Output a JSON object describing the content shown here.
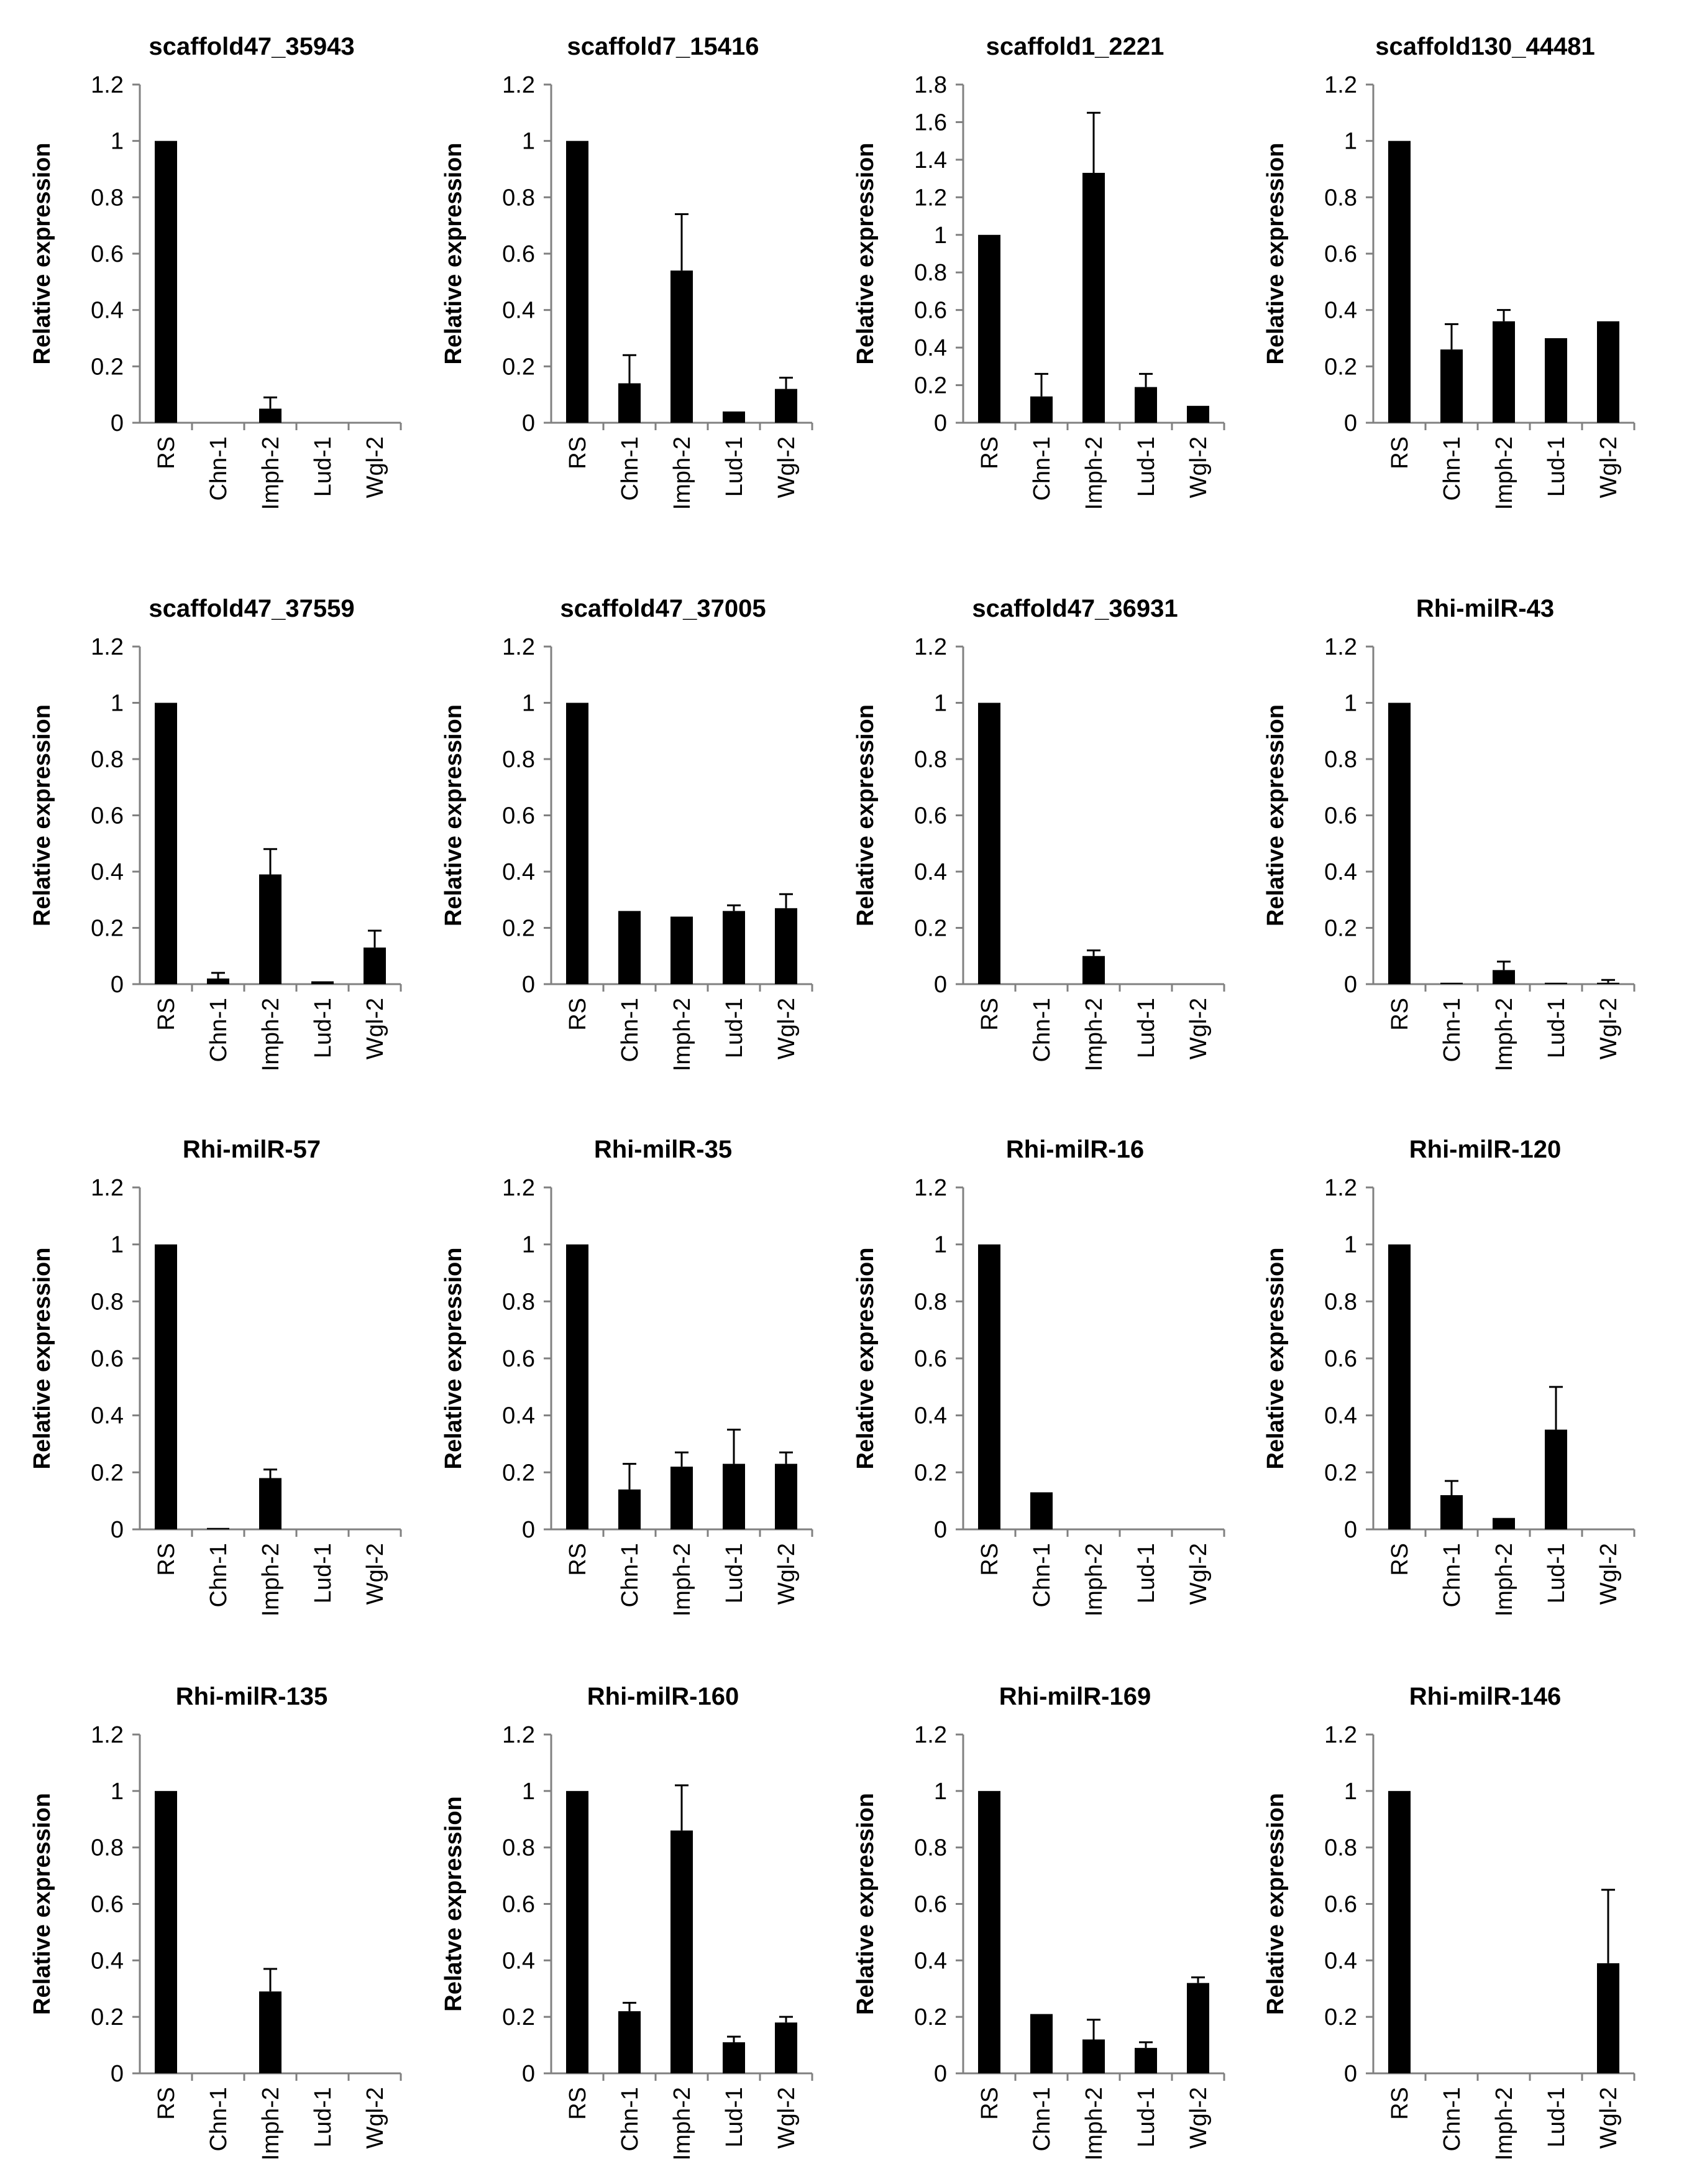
{
  "figure": {
    "categories": [
      "RS",
      "Chn-1",
      "Imph-2",
      "Lud-1",
      "Wgl-2"
    ]
  },
  "chart_data": [
    {
      "type": "bar",
      "title": "scaffold47_35943",
      "ylabel": "Relative expression",
      "ylim": [
        0,
        1.2
      ],
      "yticks": [
        "0",
        "0.2",
        "0.4",
        "0.6",
        "0.8",
        "1",
        "1.2"
      ],
      "categories": [
        "RS",
        "Chn-1",
        "Imph-2",
        "Lud-1",
        "Wgl-2"
      ],
      "values": [
        1.0,
        0,
        0.05,
        0,
        0
      ],
      "errors": [
        0,
        0,
        0.04,
        0,
        0
      ]
    },
    {
      "type": "bar",
      "title": "scaffold7_15416",
      "ylabel": "Relative expression",
      "ylim": [
        0,
        1.2
      ],
      "yticks": [
        "0",
        "0.2",
        "0.4",
        "0.6",
        "0.8",
        "1",
        "1.2"
      ],
      "categories": [
        "RS",
        "Chn-1",
        "Imph-2",
        "Lud-1",
        "Wgl-2"
      ],
      "values": [
        1.0,
        0.14,
        0.54,
        0.04,
        0.12
      ],
      "errors": [
        0,
        0.1,
        0.2,
        0,
        0.04
      ]
    },
    {
      "type": "bar",
      "title": "scaffold1_2221",
      "ylabel": "Relative expression",
      "ylim": [
        0,
        1.8
      ],
      "yticks": [
        "0",
        "0.2",
        "0.4",
        "0.6",
        "0.8",
        "1",
        "1.2",
        "1.4",
        "1.6",
        "1.8"
      ],
      "categories": [
        "RS",
        "Chn-1",
        "Imph-2",
        "Lud-1",
        "Wgl-2"
      ],
      "values": [
        1.0,
        0.14,
        1.33,
        0.19,
        0.09
      ],
      "errors": [
        0,
        0.12,
        0.32,
        0.07,
        0
      ]
    },
    {
      "type": "bar",
      "title": "scaffold130_44481",
      "ylabel": "Relative expression",
      "ylim": [
        0,
        1.2
      ],
      "yticks": [
        "0",
        "0.2",
        "0.4",
        "0.6",
        "0.8",
        "1",
        "1.2"
      ],
      "categories": [
        "RS",
        "Chn-1",
        "Imph-2",
        "Lud-1",
        "Wgl-2"
      ],
      "values": [
        1.0,
        0.26,
        0.36,
        0.3,
        0.36
      ],
      "errors": [
        0,
        0.09,
        0.04,
        0,
        0
      ]
    },
    {
      "type": "bar",
      "title": "scaffold47_37559",
      "ylabel": "Relative expression",
      "ylim": [
        0,
        1.2
      ],
      "yticks": [
        "0",
        "0.2",
        "0.4",
        "0.6",
        "0.8",
        "1",
        "1.2"
      ],
      "categories": [
        "RS",
        "Chn-1",
        "Imph-2",
        "Lud-1",
        "Wgl-2"
      ],
      "values": [
        1.0,
        0.02,
        0.39,
        0.01,
        0.13
      ],
      "errors": [
        0,
        0.02,
        0.09,
        0,
        0.06
      ]
    },
    {
      "type": "bar",
      "title": "scaffold47_37005",
      "ylabel": "Relative expression",
      "ylim": [
        0,
        1.2
      ],
      "yticks": [
        "0",
        "0.2",
        "0.4",
        "0.6",
        "0.8",
        "1",
        "1.2"
      ],
      "categories": [
        "RS",
        "Chn-1",
        "Imph-2",
        "Lud-1",
        "Wgl-2"
      ],
      "values": [
        1.0,
        0.26,
        0.24,
        0.26,
        0.27
      ],
      "errors": [
        0,
        0,
        0,
        0.02,
        0.05
      ]
    },
    {
      "type": "bar",
      "title": "scaffold47_36931",
      "ylabel": "Relative expression",
      "ylim": [
        0,
        1.2
      ],
      "yticks": [
        "0",
        "0.2",
        "0.4",
        "0.6",
        "0.8",
        "1",
        "1.2"
      ],
      "categories": [
        "RS",
        "Chn-1",
        "Imph-2",
        "Lud-1",
        "Wgl-2"
      ],
      "values": [
        1.0,
        0,
        0.1,
        0,
        0
      ],
      "errors": [
        0,
        0,
        0.02,
        0,
        0
      ]
    },
    {
      "type": "bar",
      "title": "Rhi-milR-43",
      "ylabel": "Relative expression",
      "ylim": [
        0,
        1.2
      ],
      "yticks": [
        "0",
        "0.2",
        "0.4",
        "0.6",
        "0.8",
        "1",
        "1.2"
      ],
      "categories": [
        "RS",
        "Chn-1",
        "Imph-2",
        "Lud-1",
        "Wgl-2"
      ],
      "values": [
        1.0,
        0.005,
        0.05,
        0.005,
        0.005
      ],
      "errors": [
        0,
        0,
        0.03,
        0,
        0.01
      ]
    },
    {
      "type": "bar",
      "title": "Rhi-milR-57",
      "ylabel": "Relative expression",
      "ylim": [
        0,
        1.2
      ],
      "yticks": [
        "0",
        "0.2",
        "0.4",
        "0.6",
        "0.8",
        "1",
        "1.2"
      ],
      "categories": [
        "RS",
        "Chn-1",
        "Imph-2",
        "Lud-1",
        "Wgl-2"
      ],
      "values": [
        1.0,
        0.005,
        0.18,
        0,
        0
      ],
      "errors": [
        0,
        0,
        0.03,
        0,
        0
      ]
    },
    {
      "type": "bar",
      "title": "Rhi-milR-35",
      "ylabel": "Relative expression",
      "ylim": [
        0,
        1.2
      ],
      "yticks": [
        "0",
        "0.2",
        "0.4",
        "0.6",
        "0.8",
        "1",
        "1.2"
      ],
      "categories": [
        "RS",
        "Chn-1",
        "Imph-2",
        "Lud-1",
        "Wgl-2"
      ],
      "values": [
        1.0,
        0.14,
        0.22,
        0.23,
        0.23
      ],
      "errors": [
        0,
        0.09,
        0.05,
        0.12,
        0.04
      ]
    },
    {
      "type": "bar",
      "title": "Rhi-milR-16",
      "ylabel": "Relative expression",
      "ylim": [
        0,
        1.2
      ],
      "yticks": [
        "0",
        "0.2",
        "0.4",
        "0.6",
        "0.8",
        "1",
        "1.2"
      ],
      "categories": [
        "RS",
        "Chn-1",
        "Imph-2",
        "Lud-1",
        "Wgl-2"
      ],
      "values": [
        1.0,
        0.13,
        0,
        0,
        0
      ],
      "errors": [
        0,
        0,
        0,
        0,
        0
      ]
    },
    {
      "type": "bar",
      "title": "Rhi-milR-120",
      "ylabel": "Relative expression",
      "ylim": [
        0,
        1.2
      ],
      "yticks": [
        "0",
        "0.2",
        "0.4",
        "0.6",
        "0.8",
        "1",
        "1.2"
      ],
      "categories": [
        "RS",
        "Chn-1",
        "Imph-2",
        "Lud-1",
        "Wgl-2"
      ],
      "values": [
        1.0,
        0.12,
        0.04,
        0.35,
        0
      ],
      "errors": [
        0,
        0.05,
        0,
        0.15,
        0
      ]
    },
    {
      "type": "bar",
      "title": "Rhi-milR-135",
      "ylabel": "Relative expression",
      "ylim": [
        0,
        1.2
      ],
      "yticks": [
        "0",
        "0.2",
        "0.4",
        "0.6",
        "0.8",
        "1",
        "1.2"
      ],
      "categories": [
        "RS",
        "Chn-1",
        "Imph-2",
        "Lud-1",
        "Wgl-2"
      ],
      "values": [
        1.0,
        0,
        0.29,
        0,
        0
      ],
      "errors": [
        0,
        0,
        0.08,
        0,
        0
      ]
    },
    {
      "type": "bar",
      "title": "Rhi-milR-160",
      "ylabel": "Relatve expression",
      "ylim": [
        0,
        1.2
      ],
      "yticks": [
        "0",
        "0.2",
        "0.4",
        "0.6",
        "0.8",
        "1",
        "1.2"
      ],
      "categories": [
        "RS",
        "Chn-1",
        "Imph-2",
        "Lud-1",
        "Wgl-2"
      ],
      "values": [
        1.0,
        0.22,
        0.86,
        0.11,
        0.18
      ],
      "errors": [
        0,
        0.03,
        0.16,
        0.02,
        0.02
      ]
    },
    {
      "type": "bar",
      "title": "Rhi-milR-169",
      "ylabel": "Relative expression",
      "ylim": [
        0,
        1.2
      ],
      "yticks": [
        "0",
        "0.2",
        "0.4",
        "0.6",
        "0.8",
        "1",
        "1.2"
      ],
      "categories": [
        "RS",
        "Chn-1",
        "Imph-2",
        "Lud-1",
        "Wgl-2"
      ],
      "values": [
        1.0,
        0.21,
        0.12,
        0.09,
        0.32
      ],
      "errors": [
        0,
        0,
        0.07,
        0.02,
        0.02
      ]
    },
    {
      "type": "bar",
      "title": "Rhi-milR-146",
      "ylabel": "Relative expression",
      "ylim": [
        0,
        1.2
      ],
      "yticks": [
        "0",
        "0.2",
        "0.4",
        "0.6",
        "0.8",
        "1",
        "1.2"
      ],
      "categories": [
        "RS",
        "Chn-1",
        "Imph-2",
        "Lud-1",
        "Wgl-2"
      ],
      "values": [
        1.0,
        0,
        0,
        0,
        0.39
      ],
      "errors": [
        0,
        0,
        0,
        0,
        0.26
      ]
    }
  ]
}
